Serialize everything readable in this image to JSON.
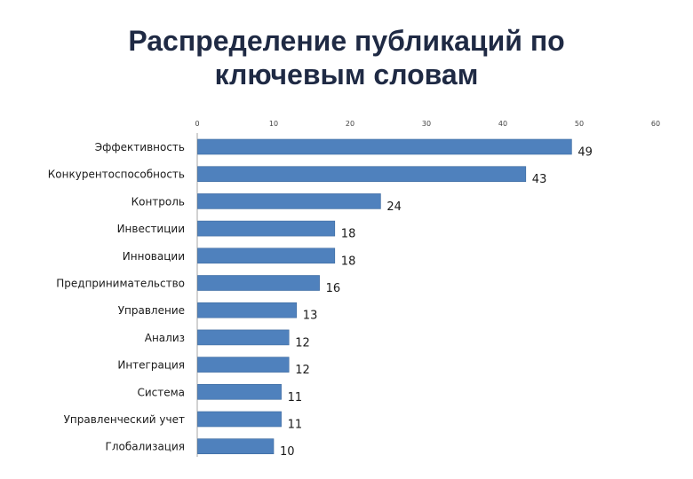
{
  "slide": {
    "title_line1": "Распределение публикаций по",
    "title_line2": "ключевым словам"
  },
  "colors": {
    "bar": "#4f81bd",
    "bar_edge": "#3d6a9e",
    "axis": "#a6a6a6",
    "label": "#1a1a1a",
    "tick": "#444444"
  },
  "chart_data": {
    "type": "bar",
    "orientation": "horizontal",
    "title": "",
    "xlabel": "",
    "ylabel": "",
    "xlim": [
      0,
      60
    ],
    "x_ticks": [
      0,
      10,
      20,
      30,
      40,
      50,
      60
    ],
    "x_axis_position": "top",
    "grid": false,
    "legend": "none",
    "categories": [
      "Эффективность",
      "Конкурентоспособность",
      "Контроль",
      "Инвестиции",
      "Инновации",
      "Предпринимательство",
      "Управление",
      "Анализ",
      "Интеграция",
      "Система",
      "Управленческий учет",
      "Глобализация"
    ],
    "values": [
      49,
      43,
      24,
      18,
      18,
      16,
      13,
      12,
      12,
      11,
      11,
      10
    ],
    "data_labels": [
      "49",
      "43",
      "24",
      "18",
      "18",
      "16",
      "13",
      "12",
      "12",
      "11",
      "11",
      "10"
    ]
  }
}
